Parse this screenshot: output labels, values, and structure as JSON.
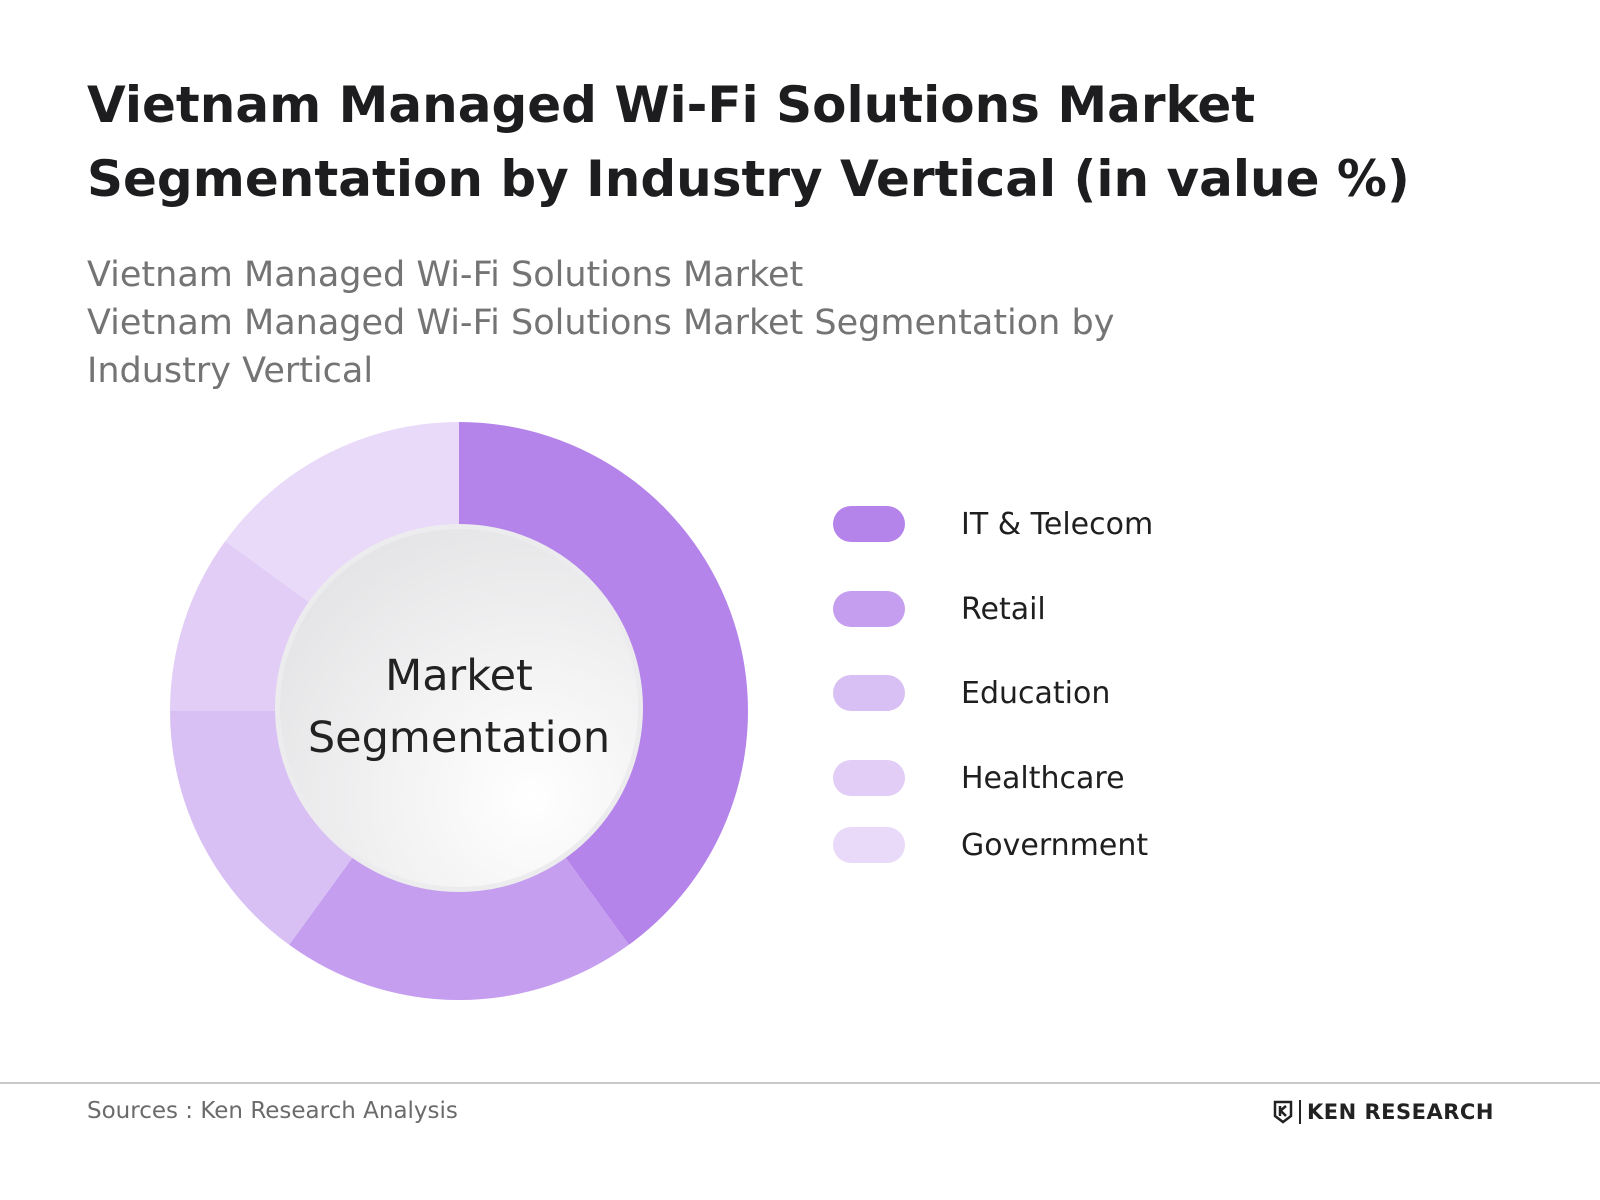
{
  "title": "Vietnam Managed Wi-Fi Solutions Market Segmentation by Industry Vertical (in value %)",
  "subtitle_1": "Vietnam Managed Wi-Fi Solutions Market",
  "subtitle_2": "Vietnam Managed Wi-Fi Solutions Market Segmentation by Industry Vertical",
  "center_label": "Market Segmentation",
  "source": "Sources : Ken Research Analysis",
  "logo_text": "KEN RESEARCH",
  "chart_data": {
    "type": "pie",
    "variant": "donut",
    "title": "Vietnam Managed Wi-Fi Solutions Market Segmentation by Industry Vertical (in value %)",
    "legend_position": "right",
    "categories": [
      "IT & Telecom",
      "Retail",
      "Education",
      "Healthcare",
      "Government"
    ],
    "values": [
      40,
      20,
      15,
      10,
      15
    ],
    "colors": [
      "#b584ea",
      "#c59eef",
      "#d9c0f4",
      "#e2cdf6",
      "#e9daf9"
    ]
  }
}
